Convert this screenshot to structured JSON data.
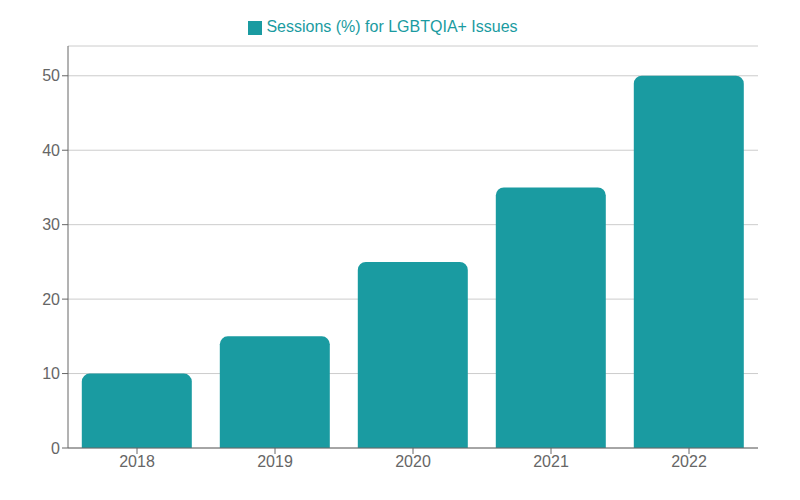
{
  "chart_data": {
    "type": "bar",
    "categories": [
      "2018",
      "2019",
      "2020",
      "2021",
      "2022"
    ],
    "series": [
      {
        "name": "Sessions (%) for LGBTQIA+ Issues",
        "color": "#1A9BA1",
        "values": [
          10,
          15,
          25,
          35,
          50
        ]
      }
    ],
    "ylim": [
      0,
      54
    ],
    "yticks": [
      0,
      10,
      20,
      30,
      40,
      50
    ],
    "grid": true,
    "legend": "top"
  }
}
